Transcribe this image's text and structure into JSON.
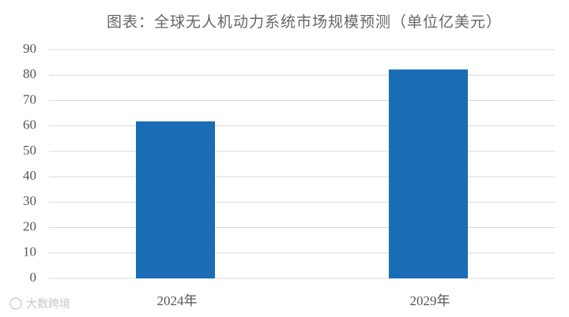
{
  "chart_data": {
    "type": "bar",
    "title": "图表：全球无人机动力系统市场规模预测（单位亿美元）",
    "categories": [
      "2024年",
      "2029年"
    ],
    "values": [
      61.8,
      82.2
    ],
    "color": "#1a6db5",
    "ylim": [
      0,
      90
    ],
    "yticks": [
      0,
      10,
      20,
      30,
      40,
      50,
      60,
      70,
      80,
      90
    ],
    "grid": true
  },
  "watermark": "大数跨境"
}
